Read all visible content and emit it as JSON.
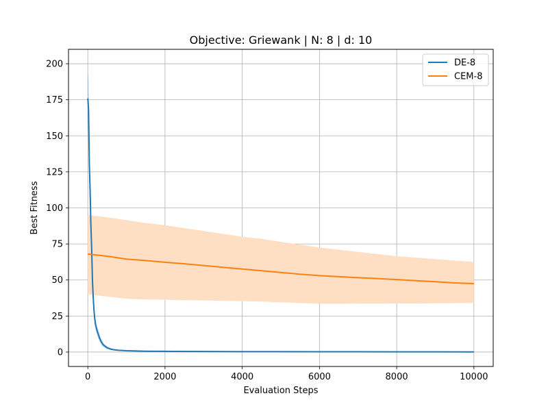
{
  "chart_data": {
    "type": "line",
    "title": "Objective: Griewank | N: 8 | d: 10",
    "xlabel": "Evaluation Steps",
    "ylabel": "Best Fitness",
    "xlim": [
      -500,
      10500
    ],
    "ylim": [
      -10,
      210
    ],
    "xticks": [
      0,
      2000,
      4000,
      6000,
      8000,
      10000
    ],
    "yticks": [
      0,
      25,
      50,
      75,
      100,
      125,
      150,
      175,
      200
    ],
    "xtick_labels": [
      "0",
      "2000",
      "4000",
      "6000",
      "8000",
      "10000"
    ],
    "ytick_labels": [
      "0",
      "25",
      "50",
      "75",
      "100",
      "125",
      "150",
      "175",
      "200"
    ],
    "grid": true,
    "legend_position": "top-right",
    "series": [
      {
        "name": "DE-8",
        "color": "#1f77b4",
        "x": [
          0,
          20,
          40,
          60,
          80,
          100,
          120,
          140,
          160,
          180,
          200,
          250,
          300,
          350,
          400,
          450,
          500,
          600,
          700,
          800,
          1000,
          1500,
          2000,
          3000,
          4000,
          5000,
          6000,
          7000,
          8000,
          9000,
          10000
        ],
        "y": [
          176,
          168,
          130,
          112,
          88,
          72,
          50,
          38,
          29,
          23,
          19,
          14,
          10,
          7,
          5,
          4,
          3,
          2,
          1.5,
          1.2,
          0.9,
          0.6,
          0.5,
          0.4,
          0.3,
          0.25,
          0.2,
          0.2,
          0.15,
          0.15,
          0.1
        ],
        "lower": [
          160,
          148,
          115,
          100,
          78,
          64,
          44,
          33,
          25,
          19,
          15,
          11,
          7.5,
          5,
          3.5,
          2.8,
          2,
          1.4,
          1,
          0.8,
          0.6,
          0.4,
          0.3,
          0.25,
          0.2,
          0.15,
          0.1,
          0.1,
          0.08,
          0.08,
          0.05
        ],
        "upper": [
          195,
          188,
          150,
          128,
          100,
          82,
          58,
          45,
          34,
          27,
          23,
          17,
          13,
          9,
          6.5,
          5,
          4,
          2.8,
          2,
          1.6,
          1.2,
          0.8,
          0.7,
          0.55,
          0.45,
          0.35,
          0.3,
          0.3,
          0.22,
          0.22,
          0.15
        ]
      },
      {
        "name": "CEM-8",
        "color": "#ff7f0e",
        "band_color": "#ffdfc4",
        "x": [
          0,
          500,
          1000,
          1500,
          2000,
          2500,
          3000,
          3500,
          4000,
          4500,
          5000,
          5500,
          6000,
          6500,
          7000,
          7500,
          8000,
          8500,
          9000,
          9500,
          10000
        ],
        "y": [
          68,
          66.5,
          64.5,
          63.5,
          62.3,
          61.2,
          60,
          58.8,
          57.6,
          56.4,
          55.2,
          54,
          53,
          52.3,
          51.6,
          51,
          50.3,
          49.5,
          48.8,
          48,
          47.5
        ],
        "lower": [
          40,
          38.5,
          37,
          36.5,
          36.3,
          36,
          35.8,
          35.5,
          35.3,
          35,
          34.5,
          34,
          33.5,
          33.5,
          33.6,
          33.6,
          33.7,
          33.7,
          33.8,
          33.9,
          34
        ],
        "upper": [
          95,
          93.5,
          91.5,
          89.5,
          88,
          86,
          84,
          82,
          80,
          78.5,
          76.5,
          74.5,
          72.5,
          71,
          69.5,
          68,
          66.5,
          65.5,
          64.5,
          63.5,
          62.5
        ]
      }
    ]
  }
}
